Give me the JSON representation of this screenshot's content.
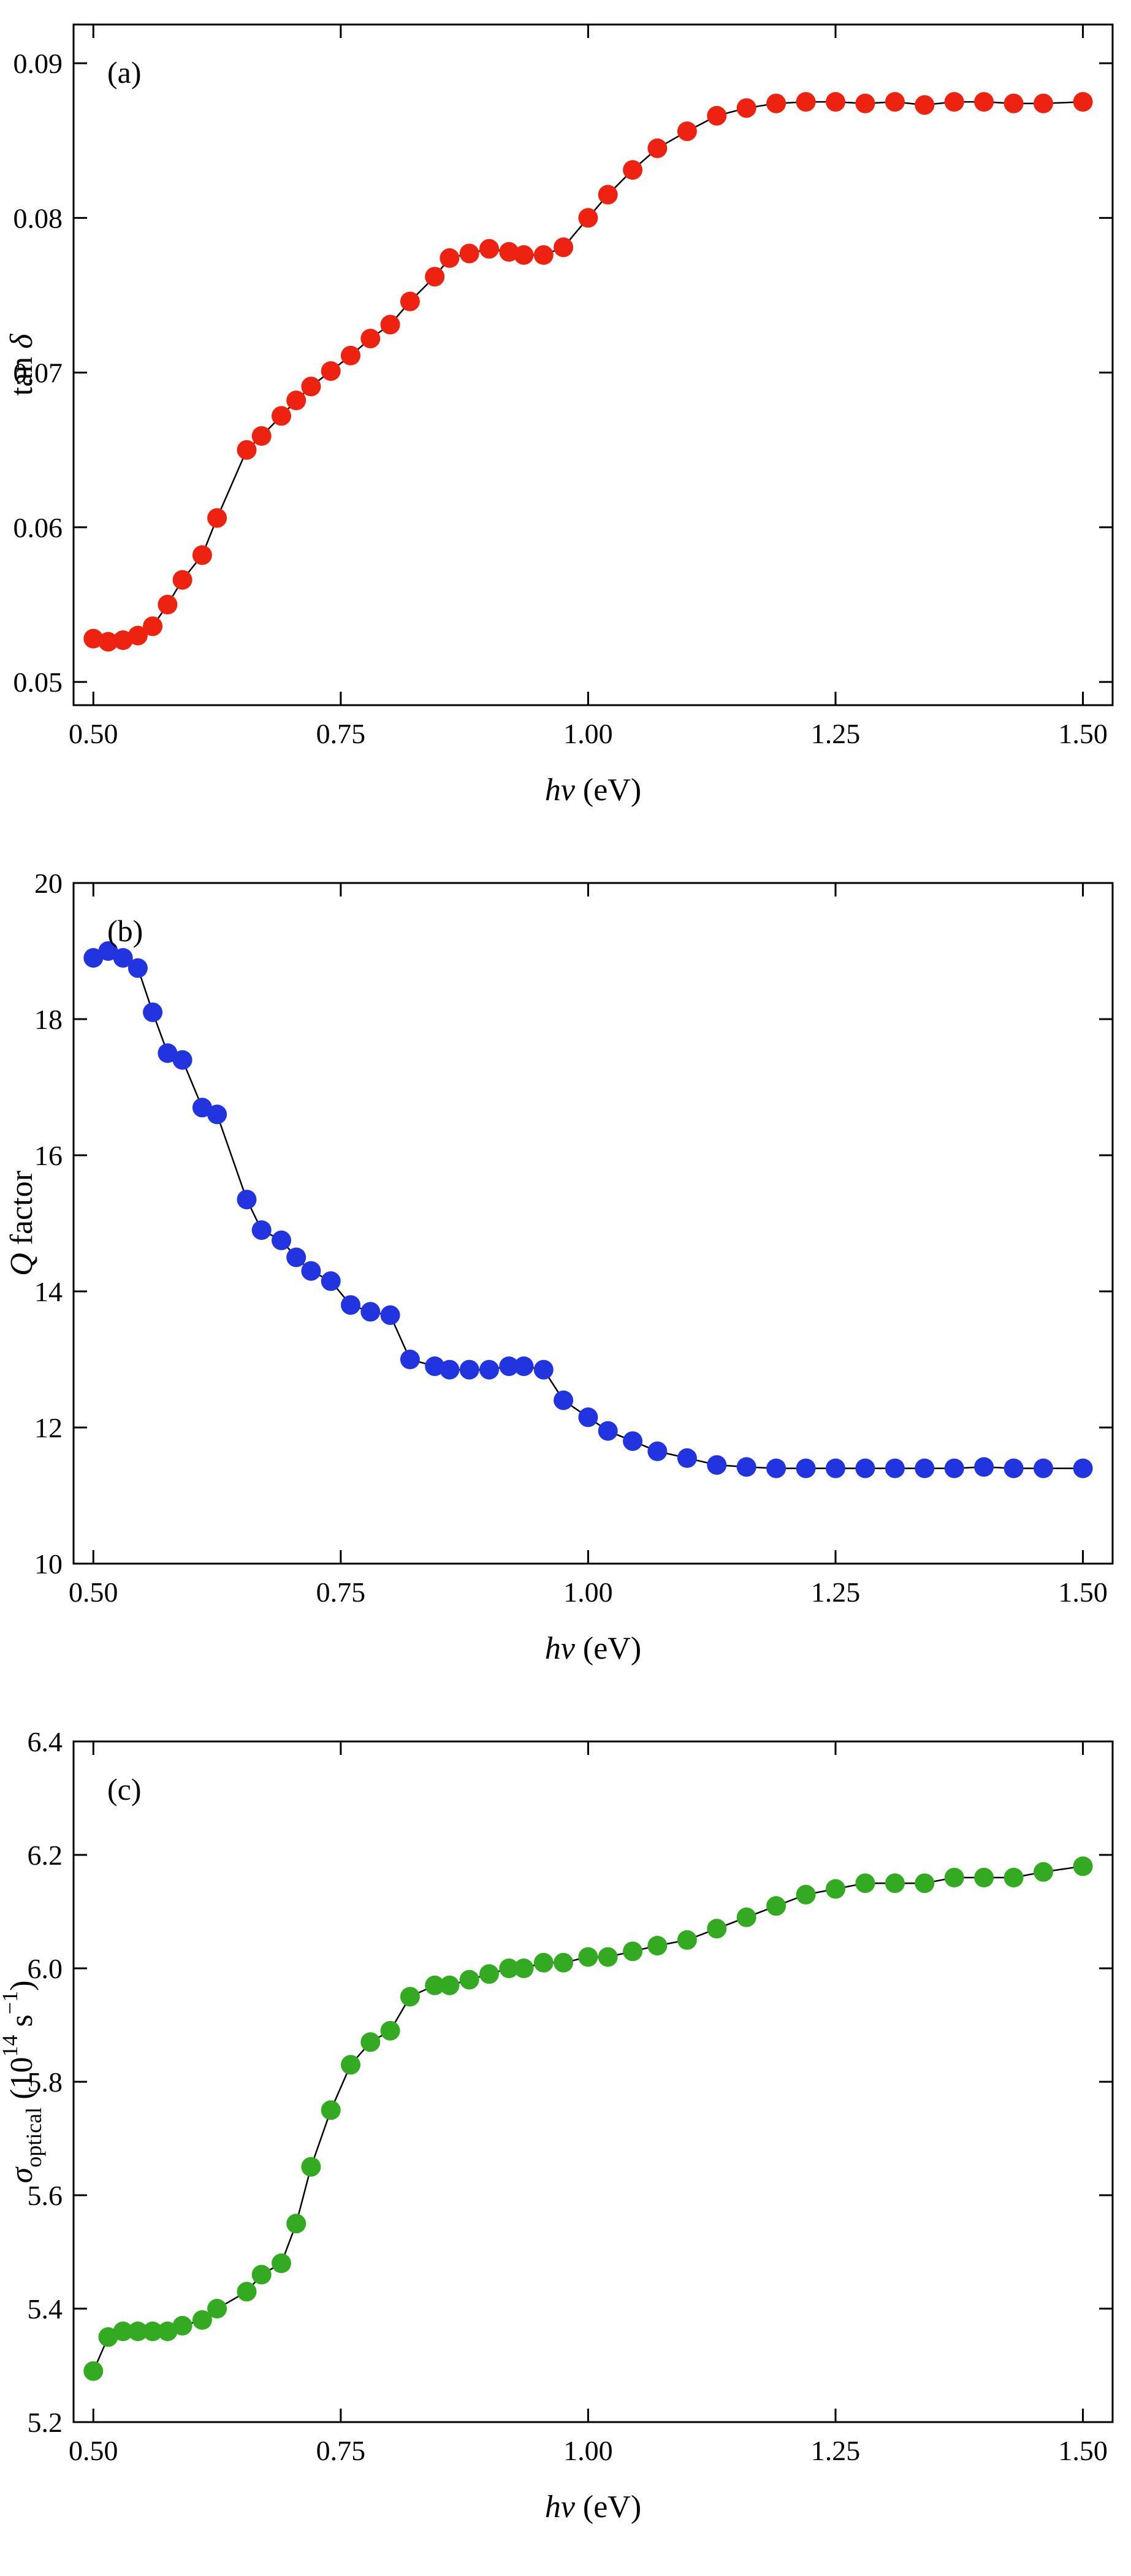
{
  "figure": {
    "background": "#ffffff",
    "frame_color": "#000000",
    "panel_labels": [
      "(a)",
      "(b)",
      "(c)"
    ]
  },
  "chart_data": [
    {
      "type": "scatter",
      "panel_label": "(a)",
      "marker_color": "#ee2211",
      "line_color": "#000000",
      "xlabel": "hν (eV)",
      "ylabel": "tan δ",
      "xlabel_segments": [
        {
          "t": "hν",
          "i": true
        },
        {
          "t": " (eV)"
        }
      ],
      "ylabel_segments": [
        {
          "t": "tan "
        },
        {
          "t": "δ",
          "i": true
        }
      ],
      "xlim": [
        0.48,
        1.53
      ],
      "ylim": [
        0.0485,
        0.0925
      ],
      "xticks": [
        0.5,
        0.75,
        1.0,
        1.25,
        1.5
      ],
      "xtick_labels": [
        "0.50",
        "0.75",
        "1.00",
        "1.25",
        "1.50"
      ],
      "yticks": [
        0.05,
        0.06,
        0.07,
        0.08,
        0.09
      ],
      "ytick_labels": [
        "0.05",
        "0.06",
        "0.07",
        "0.08",
        "0.09"
      ],
      "x": [
        0.5,
        0.515,
        0.53,
        0.545,
        0.56,
        0.575,
        0.59,
        0.61,
        0.625,
        0.655,
        0.67,
        0.69,
        0.705,
        0.72,
        0.74,
        0.76,
        0.78,
        0.8,
        0.82,
        0.845,
        0.86,
        0.88,
        0.9,
        0.92,
        0.935,
        0.955,
        0.975,
        1.0,
        1.02,
        1.045,
        1.07,
        1.1,
        1.13,
        1.16,
        1.19,
        1.22,
        1.25,
        1.28,
        1.31,
        1.34,
        1.37,
        1.4,
        1.43,
        1.46,
        1.5
      ],
      "y": [
        0.0528,
        0.0526,
        0.0527,
        0.053,
        0.0536,
        0.055,
        0.0566,
        0.0582,
        0.0606,
        0.065,
        0.0659,
        0.0672,
        0.0682,
        0.0691,
        0.0701,
        0.0711,
        0.0722,
        0.0731,
        0.0746,
        0.0762,
        0.0774,
        0.0777,
        0.078,
        0.0778,
        0.0776,
        0.0776,
        0.0781,
        0.08,
        0.0815,
        0.0831,
        0.0845,
        0.0856,
        0.0866,
        0.0871,
        0.0874,
        0.0875,
        0.0875,
        0.0874,
        0.0875,
        0.0873,
        0.0875,
        0.0875,
        0.0874,
        0.0874,
        0.0875
      ]
    },
    {
      "type": "scatter",
      "panel_label": "(b)",
      "marker_color": "#2233e0",
      "line_color": "#000000",
      "xlabel": "hν (eV)",
      "ylabel": "Q factor",
      "xlabel_segments": [
        {
          "t": "hν",
          "i": true
        },
        {
          "t": " (eV)"
        }
      ],
      "ylabel_segments": [
        {
          "t": "Q",
          "i": true
        },
        {
          "t": " factor"
        }
      ],
      "xlim": [
        0.48,
        1.53
      ],
      "ylim": [
        10,
        20
      ],
      "xticks": [
        0.5,
        0.75,
        1.0,
        1.25,
        1.5
      ],
      "xtick_labels": [
        "0.50",
        "0.75",
        "1.00",
        "1.25",
        "1.50"
      ],
      "yticks": [
        10,
        12,
        14,
        16,
        18,
        20
      ],
      "ytick_labels": [
        "10",
        "12",
        "14",
        "16",
        "18",
        "20"
      ],
      "x": [
        0.5,
        0.515,
        0.53,
        0.545,
        0.56,
        0.575,
        0.59,
        0.61,
        0.625,
        0.655,
        0.67,
        0.69,
        0.705,
        0.72,
        0.74,
        0.76,
        0.78,
        0.8,
        0.82,
        0.845,
        0.86,
        0.88,
        0.9,
        0.92,
        0.935,
        0.955,
        0.975,
        1.0,
        1.02,
        1.045,
        1.07,
        1.1,
        1.13,
        1.16,
        1.19,
        1.22,
        1.25,
        1.28,
        1.31,
        1.34,
        1.37,
        1.4,
        1.43,
        1.46,
        1.5
      ],
      "y": [
        18.9,
        19.0,
        18.9,
        18.75,
        18.1,
        17.5,
        17.4,
        16.7,
        16.6,
        15.35,
        14.9,
        14.75,
        14.5,
        14.3,
        14.15,
        13.8,
        13.7,
        13.65,
        13.0,
        12.9,
        12.85,
        12.85,
        12.85,
        12.9,
        12.9,
        12.85,
        12.4,
        12.15,
        11.95,
        11.8,
        11.65,
        11.55,
        11.45,
        11.42,
        11.4,
        11.4,
        11.4,
        11.4,
        11.4,
        11.4,
        11.4,
        11.42,
        11.4,
        11.4,
        11.4
      ]
    },
    {
      "type": "scatter",
      "panel_label": "(c)",
      "marker_color": "#33aa22",
      "line_color": "#000000",
      "xlabel": "hν (eV)",
      "ylabel": "σ_optical (10^14 s^-1)",
      "xlabel_segments": [
        {
          "t": "hν",
          "i": true
        },
        {
          "t": " (eV)"
        }
      ],
      "ylabel_segments": [
        {
          "t": "σ",
          "i": true
        },
        {
          "t": "optical",
          "sub": true
        },
        {
          "t": " (10"
        },
        {
          "t": "14",
          "sup": true
        },
        {
          "t": " s"
        },
        {
          "t": "−1",
          "sup": true
        },
        {
          "t": ")"
        }
      ],
      "xlim": [
        0.48,
        1.53
      ],
      "ylim": [
        5.2,
        6.4
      ],
      "xticks": [
        0.5,
        0.75,
        1.0,
        1.25,
        1.5
      ],
      "xtick_labels": [
        "0.50",
        "0.75",
        "1.00",
        "1.25",
        "1.50"
      ],
      "yticks": [
        5.2,
        5.4,
        5.6,
        5.8,
        6.0,
        6.2,
        6.4
      ],
      "ytick_labels": [
        "5.2",
        "5.4",
        "5.6",
        "5.8",
        "6.0",
        "6.2",
        "6.4"
      ],
      "x": [
        0.5,
        0.515,
        0.53,
        0.545,
        0.56,
        0.575,
        0.59,
        0.61,
        0.625,
        0.655,
        0.67,
        0.69,
        0.705,
        0.72,
        0.74,
        0.76,
        0.78,
        0.8,
        0.82,
        0.845,
        0.86,
        0.88,
        0.9,
        0.92,
        0.935,
        0.955,
        0.975,
        1.0,
        1.02,
        1.045,
        1.07,
        1.1,
        1.13,
        1.16,
        1.19,
        1.22,
        1.25,
        1.28,
        1.31,
        1.34,
        1.37,
        1.4,
        1.43,
        1.46,
        1.5
      ],
      "y": [
        5.29,
        5.35,
        5.36,
        5.36,
        5.36,
        5.36,
        5.37,
        5.38,
        5.4,
        5.43,
        5.46,
        5.48,
        5.55,
        5.65,
        5.75,
        5.83,
        5.87,
        5.89,
        5.95,
        5.97,
        5.97,
        5.98,
        5.99,
        6.0,
        6.0,
        6.01,
        6.01,
        6.02,
        6.02,
        6.03,
        6.04,
        6.05,
        6.07,
        6.09,
        6.11,
        6.13,
        6.14,
        6.15,
        6.15,
        6.15,
        6.16,
        6.16,
        6.16,
        6.17,
        6.18
      ]
    }
  ]
}
